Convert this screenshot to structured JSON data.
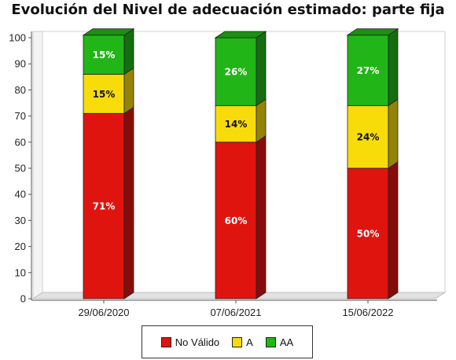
{
  "chart_data": {
    "type": "bar",
    "stacked": true,
    "title": "Evolución del Nivel de adecuación estimado: parte fija",
    "xlabel": "",
    "ylabel": "",
    "ylim": [
      0,
      100
    ],
    "yticks": [
      0,
      10,
      20,
      30,
      40,
      50,
      60,
      70,
      80,
      90,
      100
    ],
    "categories": [
      "29/06/2020",
      "07/06/2021",
      "15/06/2022"
    ],
    "series": [
      {
        "name": "No Válido",
        "color": "#e0140f",
        "values": [
          71,
          60,
          50
        ],
        "labels": [
          "71%",
          "60%",
          "50%"
        ]
      },
      {
        "name": "A",
        "color": "#f7dc0a",
        "values": [
          15,
          14,
          24
        ],
        "labels": [
          "15%",
          "14%",
          "24%"
        ]
      },
      {
        "name": "AA",
        "color": "#22b517",
        "values": [
          15,
          26,
          27
        ],
        "labels": [
          "15%",
          "26%",
          "27%"
        ]
      }
    ],
    "legend_position": "bottom",
    "grid": false
  }
}
